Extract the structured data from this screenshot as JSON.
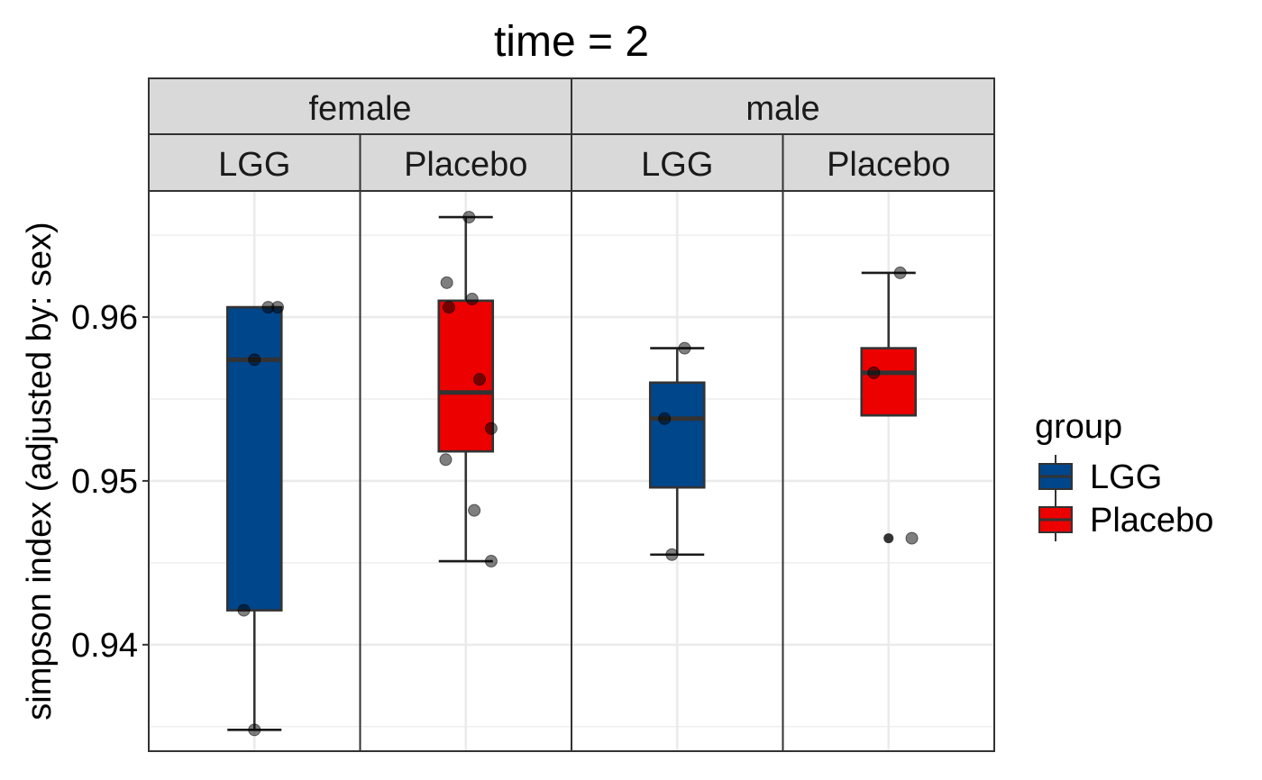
{
  "chart_data": {
    "type": "boxplot",
    "title": "time = 2",
    "ylabel": "simpson index (adjusted by: sex)",
    "xlabel": "",
    "ylim": [
      0.9335,
      0.9677
    ],
    "y_ticks": [
      0.94,
      0.95,
      0.96
    ],
    "y_tick_labels": [
      "0.94",
      "0.95",
      "0.96"
    ],
    "grid": true,
    "facet_rows": [
      {
        "label": "female",
        "columns": [
          "LGG",
          "Placebo"
        ]
      },
      {
        "label": "male",
        "columns": [
          "LGG",
          "Placebo"
        ]
      }
    ],
    "legend": {
      "title": "group",
      "placement": "right",
      "entries": [
        {
          "label": "LGG",
          "color": "#00468B"
        },
        {
          "label": "Placebo",
          "color": "#ED0000"
        }
      ]
    },
    "panels": [
      {
        "sex": "female",
        "group": "LGG",
        "color": "#00468B",
        "box": {
          "min": 0.9348,
          "q1": 0.9421,
          "median": 0.9574,
          "q3": 0.9606,
          "max": 0.9606
        },
        "points": [
          [
            0.0,
            0.9348
          ],
          [
            -0.1,
            0.9421
          ],
          [
            0.13,
            0.9606
          ],
          [
            0.22,
            0.9606
          ],
          [
            0.0,
            0.9574
          ]
        ],
        "outliers": []
      },
      {
        "sex": "female",
        "group": "Placebo",
        "color": "#ED0000",
        "box": {
          "min": 0.9451,
          "q1": 0.9518,
          "median": 0.9554,
          "q3": 0.961,
          "max": 0.9661
        },
        "points": [
          [
            0.03,
            0.9661
          ],
          [
            -0.18,
            0.9621
          ],
          [
            -0.16,
            0.9606
          ],
          [
            0.06,
            0.9611
          ],
          [
            0.13,
            0.9562
          ],
          [
            0.24,
            0.9532
          ],
          [
            -0.19,
            0.9513
          ],
          [
            0.08,
            0.9482
          ],
          [
            0.24,
            0.9451
          ]
        ],
        "outliers": []
      },
      {
        "sex": "male",
        "group": "LGG",
        "color": "#00468B",
        "box": {
          "min": 0.9455,
          "q1": 0.9496,
          "median": 0.9538,
          "q3": 0.956,
          "max": 0.9581
        },
        "points": [
          [
            0.07,
            0.9581
          ],
          [
            -0.12,
            0.9538
          ],
          [
            -0.05,
            0.9455
          ]
        ],
        "outliers": []
      },
      {
        "sex": "male",
        "group": "Placebo",
        "color": "#ED0000",
        "box": {
          "min": 0.954,
          "q1": 0.954,
          "median": 0.9566,
          "q3": 0.9581,
          "max": 0.9627
        },
        "points": [
          [
            0.11,
            0.9627
          ],
          [
            -0.14,
            0.9566
          ],
          [
            0.22,
            0.9465
          ]
        ],
        "outliers": [
          0.9465
        ]
      }
    ]
  }
}
